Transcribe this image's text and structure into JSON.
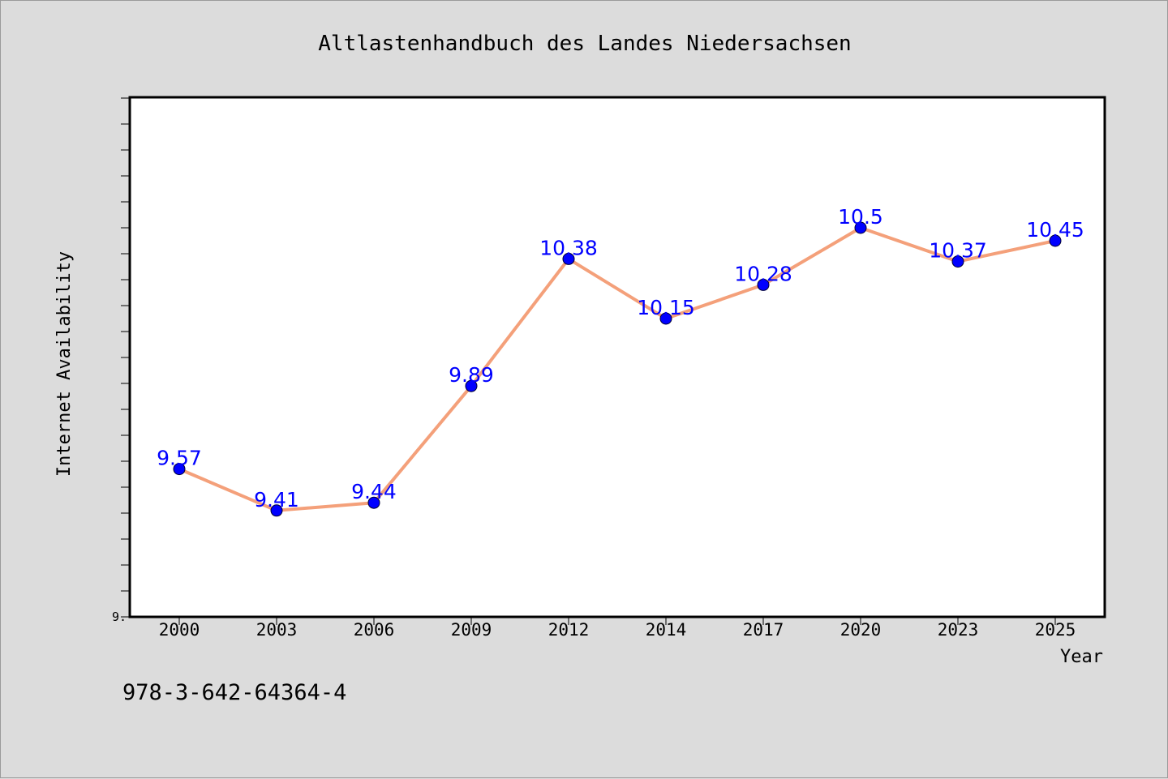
{
  "colors": {
    "background": "#dcdcdc",
    "plot_background": "#ffffff",
    "line": "#f4a07a",
    "marker": "#0000ff",
    "data_label": "#0000ff"
  },
  "footer": {
    "isbn": "978-3-642-64364-4"
  },
  "chart_data": {
    "type": "line",
    "title": "Altlastenhandbuch des Landes Niedersachsen",
    "xlabel": "Year",
    "ylabel": "Internet Availability",
    "categories": [
      "2000",
      "2003",
      "2006",
      "2009",
      "2012",
      "2014",
      "2017",
      "2020",
      "2023",
      "2025"
    ],
    "series": [
      {
        "values": [
          9.57,
          9.41,
          9.44,
          9.89,
          10.38,
          10.15,
          10.28,
          10.5,
          10.37,
          10.45
        ],
        "labels": [
          "9.57",
          "9.41",
          "9.44",
          "9.89",
          "10.38",
          "10.15",
          "10.28",
          "10.5",
          "10.37",
          "10.45"
        ]
      }
    ],
    "ylim": [
      9.0,
      11.0
    ],
    "ytick_labels": [
      "9."
    ],
    "grid": false,
    "legend": "none",
    "marker": "circle"
  }
}
